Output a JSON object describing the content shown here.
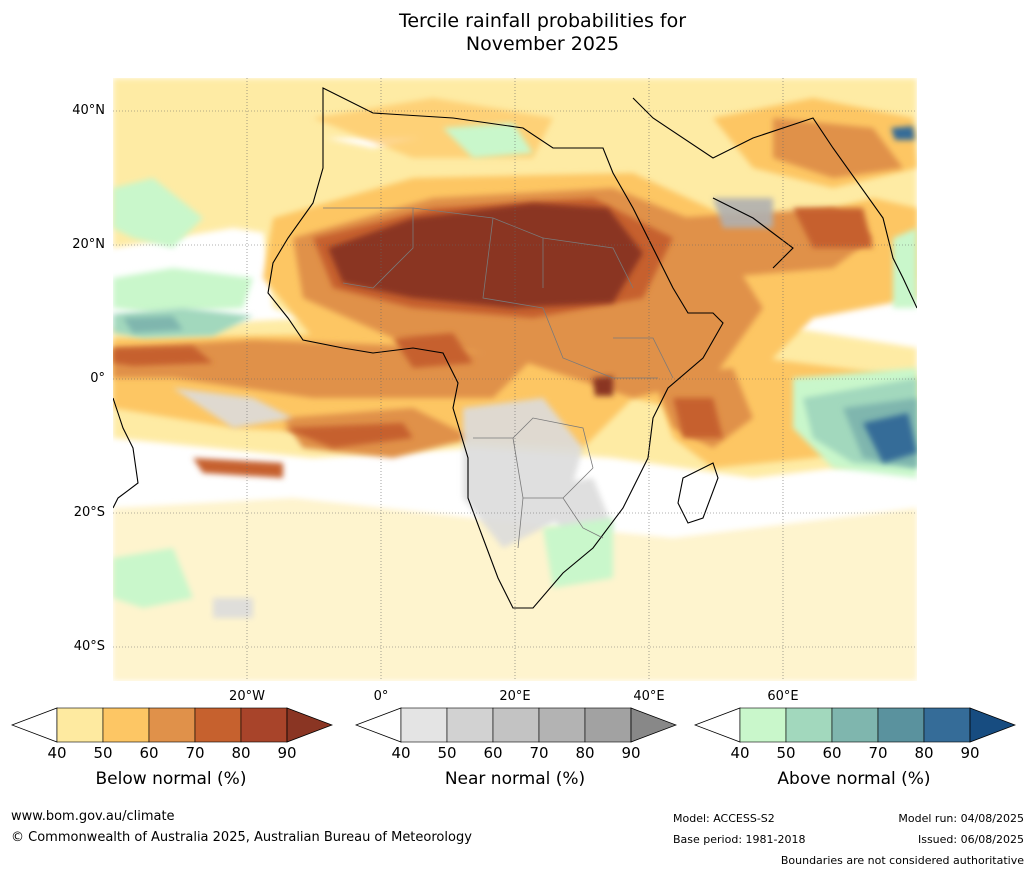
{
  "title_line1": "Tercile rainfall probabilities for",
  "title_line2": "November 2025",
  "map": {
    "lat_labels": [
      "40°N",
      "20°N",
      "0°",
      "20°S",
      "40°S"
    ],
    "lon_labels": [
      "20°W",
      "0°",
      "20°E",
      "40°E",
      "60°E"
    ]
  },
  "colorbars": [
    {
      "title": "Below normal (%)",
      "ticks": [
        "40",
        "50",
        "60",
        "70",
        "80",
        "90"
      ],
      "colors": [
        "#ffffff",
        "#feeaa0",
        "#fdc664",
        "#e0914a",
        "#c6612e",
        "#a8442a",
        "#8a3523"
      ]
    },
    {
      "title": "Near normal (%)",
      "ticks": [
        "40",
        "50",
        "60",
        "70",
        "80",
        "90"
      ],
      "colors": [
        "#ffffff",
        "#e4e4e4",
        "#d2d2d2",
        "#c3c3c3",
        "#b3b3b3",
        "#a2a2a2",
        "#888888"
      ]
    },
    {
      "title": "Above normal (%)",
      "ticks": [
        "40",
        "50",
        "60",
        "70",
        "80",
        "90"
      ],
      "colors": [
        "#ffffff",
        "#c9f7cb",
        "#a2d8bd",
        "#7fb6ae",
        "#5a929e",
        "#356c98",
        "#174c80"
      ]
    }
  ],
  "footer": {
    "website": "www.bom.gov.au/climate",
    "copyright": "© Commonwealth of Australia 2025, Australian Bureau of Meteorology",
    "model": "Model: ACCESS-S2",
    "base_period": "Base period: 1981-2018",
    "model_run": "Model run: 04/08/2025",
    "issued": "Issued: 06/08/2025",
    "disclaimer": "Boundaries are not considered authoritative"
  }
}
